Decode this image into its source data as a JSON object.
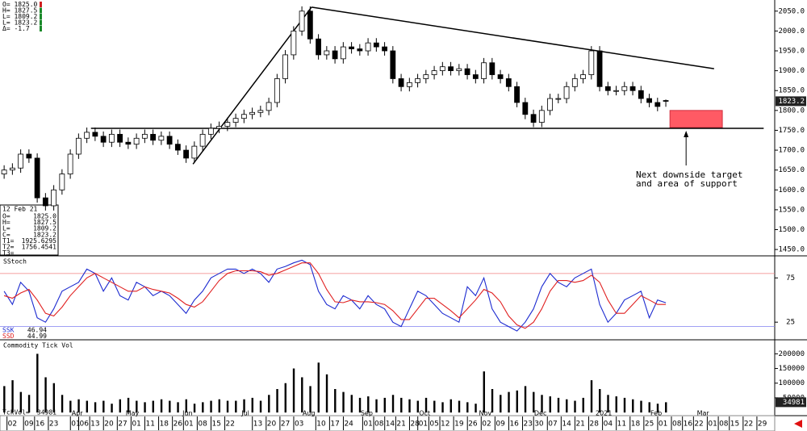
{
  "chart_data": {
    "type": "candlestick",
    "header": [
      "O=  1825.0",
      "H=  1827.5",
      "L=  1809.2",
      "L=  1823.2",
      "Δ=   -1.7"
    ],
    "data_window": {
      "date": "12 Feb 21",
      "rows": [
        {
          "label": "O=",
          "value": "1825.0"
        },
        {
          "label": "H=",
          "value": "1827.5"
        },
        {
          "label": "L=",
          "value": "1809.2"
        },
        {
          "label": "C=",
          "value": "1823.2"
        },
        {
          "label": "T1=",
          "value": "1925.6295"
        },
        {
          "label": "T2=",
          "value": "1756.4541"
        },
        {
          "label": "T3="
        }
      ]
    },
    "xlim": [
      0,
      281
    ],
    "xticks": [
      {
        "value": 4,
        "label": "02"
      },
      {
        "value": 10,
        "label": "09"
      },
      {
        "value": 14,
        "label": "16"
      },
      {
        "value": 19,
        "label": "23"
      },
      {
        "value": 27,
        "label": "01"
      },
      {
        "value": 30,
        "label": "06"
      },
      {
        "value": 34,
        "label": "13"
      },
      {
        "value": 39,
        "label": "20"
      },
      {
        "value": 44,
        "label": "27"
      },
      {
        "value": 49,
        "label": "01"
      },
      {
        "value": 54,
        "label": "11"
      },
      {
        "value": 59,
        "label": "18"
      },
      {
        "value": 64,
        "label": "26"
      },
      {
        "value": 68,
        "label": "01"
      },
      {
        "value": 73,
        "label": "08"
      },
      {
        "value": 78,
        "label": "15"
      },
      {
        "value": 83,
        "label": "22"
      },
      {
        "value": 93,
        "label": "13"
      },
      {
        "value": 98,
        "label": "20"
      },
      {
        "value": 103,
        "label": "27"
      },
      {
        "value": 108,
        "label": "03"
      },
      {
        "value": 116,
        "label": "10"
      },
      {
        "value": 121,
        "label": "17"
      },
      {
        "value": 126,
        "label": "24"
      },
      {
        "value": 133,
        "label": "01"
      },
      {
        "value": 137,
        "label": "08"
      },
      {
        "value": 141,
        "label": "14"
      },
      {
        "value": 145,
        "label": "21"
      },
      {
        "value": 150,
        "label": "28"
      },
      {
        "value": 153,
        "label": "01"
      },
      {
        "value": 157,
        "label": "05"
      },
      {
        "value": 161,
        "label": "12"
      },
      {
        "value": 166,
        "label": "19"
      },
      {
        "value": 171,
        "label": "26"
      },
      {
        "value": 176,
        "label": "02"
      },
      {
        "value": 181,
        "label": "09"
      },
      {
        "value": 186,
        "label": "16"
      },
      {
        "value": 191,
        "label": "23"
      },
      {
        "value": 195,
        "label": "30"
      },
      {
        "value": 200,
        "label": "07"
      },
      {
        "value": 205,
        "label": "14"
      },
      {
        "value": 210,
        "label": "21"
      },
      {
        "value": 215,
        "label": "28"
      },
      {
        "value": 220,
        "label": "04"
      },
      {
        "value": 225,
        "label": "11"
      },
      {
        "value": 230,
        "label": "18"
      },
      {
        "value": 235,
        "label": "25"
      },
      {
        "value": 240,
        "label": "01"
      },
      {
        "value": 245,
        "label": "08"
      },
      {
        "value": 249,
        "label": "16"
      },
      {
        "value": 253,
        "label": "22"
      },
      {
        "value": 258,
        "label": "01"
      },
      {
        "value": 262,
        "label": "08"
      },
      {
        "value": 266,
        "label": "15"
      },
      {
        "value": 271,
        "label": "22"
      },
      {
        "value": 276,
        "label": "29"
      }
    ],
    "month_labels": [
      {
        "value": 28,
        "label": "Apr"
      },
      {
        "value": 48,
        "label": "May"
      },
      {
        "value": 68,
        "label": "Jun"
      },
      {
        "value": 89,
        "label": "Jul"
      },
      {
        "value": 112,
        "label": "Aug"
      },
      {
        "value": 133,
        "label": "Sep"
      },
      {
        "value": 154,
        "label": "Oct"
      },
      {
        "value": 176,
        "label": "Nov"
      },
      {
        "value": 196,
        "label": "Dec"
      },
      {
        "value": 219,
        "label": "2021"
      },
      {
        "value": 238,
        "label": "Feb"
      },
      {
        "value": 255,
        "label": "Mar"
      }
    ],
    "price": {
      "ylim": [
        1436,
        2078
      ],
      "yticks": [
        {
          "value": 2050,
          "label": "2050.0"
        },
        {
          "value": 2000,
          "label": "2000.0"
        },
        {
          "value": 1950,
          "label": "1950.0"
        },
        {
          "value": 1900,
          "label": "1900.0"
        },
        {
          "value": 1850,
          "label": "1850.0"
        },
        {
          "value": 1800,
          "label": "1800.0"
        },
        {
          "value": 1750,
          "label": "1750.0"
        },
        {
          "value": 1700,
          "label": "1700.0"
        },
        {
          "value": 1650,
          "label": "1650.0"
        },
        {
          "value": 1600,
          "label": "1600.0"
        },
        {
          "value": 1550,
          "label": "1550.0"
        },
        {
          "value": 1500,
          "label": "1500.0"
        },
        {
          "value": 1450,
          "label": "1450.0"
        }
      ],
      "open": [
        1640,
        1650,
        1655,
        1690,
        1680,
        1580,
        1560,
        1600,
        1640,
        1690,
        1730,
        1745,
        1735,
        1720,
        1740,
        1720,
        1715,
        1730,
        1740,
        1725,
        1735,
        1715,
        1700,
        1680,
        1710,
        1740,
        1755,
        1760,
        1770,
        1780,
        1790,
        1795,
        1800,
        1820,
        1880,
        1940,
        2000,
        2050,
        1980,
        1940,
        1950,
        1930,
        1960,
        1955,
        1950,
        1970,
        1960,
        1950,
        1880,
        1860,
        1870,
        1880,
        1890,
        1900,
        1910,
        1900,
        1905,
        1890,
        1880,
        1920,
        1890,
        1880,
        1860,
        1820,
        1790,
        1770,
        1800,
        1830,
        1830,
        1860,
        1880,
        1890,
        1950,
        1860,
        1850,
        1850,
        1860,
        1850,
        1830,
        1820,
        1825
      ],
      "high": [
        1662,
        1667,
        1702,
        1702,
        1692,
        1592,
        1612,
        1652,
        1702,
        1742,
        1757,
        1757,
        1747,
        1752,
        1752,
        1732,
        1742,
        1752,
        1752,
        1747,
        1747,
        1727,
        1712,
        1722,
        1752,
        1767,
        1772,
        1782,
        1792,
        1802,
        1807,
        1812,
        1832,
        1892,
        1952,
        2012,
        2062,
        2062,
        1992,
        1962,
        1962,
        1972,
        1972,
        1967,
        1982,
        1982,
        1972,
        1962,
        1892,
        1882,
        1892,
        1902,
        1912,
        1922,
        1922,
        1917,
        1917,
        1902,
        1932,
        1932,
        1902,
        1892,
        1872,
        1832,
        1802,
        1812,
        1842,
        1842,
        1872,
        1892,
        1902,
        1962,
        1962,
        1872,
        1862,
        1872,
        1872,
        1862,
        1842,
        1832,
        1827.5
      ],
      "low": [
        1628,
        1638,
        1643,
        1668,
        1568,
        1548,
        1548,
        1588,
        1628,
        1678,
        1718,
        1723,
        1708,
        1708,
        1708,
        1703,
        1703,
        1718,
        1713,
        1713,
        1703,
        1688,
        1668,
        1668,
        1698,
        1728,
        1743,
        1748,
        1758,
        1768,
        1778,
        1783,
        1788,
        1808,
        1868,
        1928,
        1988,
        1968,
        1928,
        1928,
        1918,
        1918,
        1943,
        1938,
        1938,
        1948,
        1938,
        1868,
        1848,
        1848,
        1858,
        1868,
        1878,
        1888,
        1888,
        1888,
        1878,
        1868,
        1868,
        1878,
        1868,
        1848,
        1808,
        1778,
        1758,
        1758,
        1788,
        1818,
        1818,
        1848,
        1868,
        1878,
        1848,
        1838,
        1838,
        1838,
        1838,
        1818,
        1808,
        1798,
        1809.2
      ],
      "close": [
        1650,
        1655,
        1690,
        1680,
        1580,
        1560,
        1600,
        1640,
        1690,
        1730,
        1745,
        1735,
        1720,
        1740,
        1720,
        1715,
        1730,
        1740,
        1725,
        1735,
        1715,
        1700,
        1680,
        1710,
        1740,
        1755,
        1760,
        1770,
        1780,
        1790,
        1795,
        1800,
        1820,
        1880,
        1940,
        2000,
        2050,
        1980,
        1940,
        1950,
        1930,
        1960,
        1955,
        1950,
        1970,
        1960,
        1950,
        1880,
        1860,
        1870,
        1880,
        1890,
        1900,
        1910,
        1900,
        1905,
        1890,
        1880,
        1920,
        1890,
        1880,
        1860,
        1820,
        1790,
        1770,
        1800,
        1830,
        1830,
        1860,
        1880,
        1890,
        1950,
        1860,
        1850,
        1850,
        1860,
        1850,
        1830,
        1820,
        1810,
        1823.2
      ],
      "last_label": "1823.2",
      "trendlines": [
        {
          "x": [
            70,
            113
          ],
          "y": [
            1665,
            2060
          ]
        },
        {
          "x": [
            113,
            259
          ],
          "y": [
            2060,
            1905
          ]
        },
        {
          "x": [
            33,
            277
          ],
          "y": [
            1755,
            1755
          ]
        }
      ],
      "zone": {
        "x": [
          243,
          262
        ],
        "y": [
          1757,
          1800
        ],
        "color": "#ff5a64"
      },
      "annotation": [
        "Next downside target",
        "and area of support"
      ]
    },
    "stoch": {
      "title": "SStoch",
      "ylim": [
        6,
        99
      ],
      "yticks": [
        75,
        25
      ],
      "bands": [
        {
          "value": 80,
          "color": "#f08080"
        },
        {
          "value": 20,
          "color": "#8080f0"
        }
      ],
      "series": [
        {
          "name": "SSK",
          "color": "#1c2ad0",
          "values": [
            60,
            45,
            70,
            60,
            30,
            25,
            40,
            60,
            65,
            70,
            85,
            80,
            60,
            75,
            55,
            50,
            70,
            65,
            55,
            60,
            55,
            45,
            35,
            50,
            60,
            75,
            80,
            85,
            85,
            80,
            85,
            80,
            70,
            85,
            88,
            92,
            95,
            90,
            60,
            45,
            40,
            55,
            50,
            40,
            55,
            45,
            40,
            25,
            20,
            40,
            60,
            55,
            45,
            35,
            30,
            25,
            65,
            55,
            75,
            40,
            25,
            20,
            15,
            25,
            40,
            65,
            80,
            70,
            65,
            75,
            80,
            85,
            45,
            25,
            35,
            50,
            55,
            60,
            30,
            50,
            46.94
          ]
        },
        {
          "name": "SSD",
          "color": "#e02020",
          "values": [
            55,
            52,
            58,
            62,
            50,
            35,
            32,
            42,
            55,
            65,
            75,
            80,
            75,
            70,
            65,
            60,
            60,
            65,
            62,
            60,
            58,
            52,
            45,
            42,
            48,
            60,
            72,
            80,
            83,
            83,
            83,
            82,
            78,
            80,
            84,
            88,
            92,
            92,
            80,
            62,
            48,
            47,
            50,
            48,
            48,
            47,
            45,
            38,
            28,
            28,
            40,
            52,
            52,
            45,
            38,
            30,
            40,
            50,
            62,
            58,
            48,
            32,
            22,
            18,
            25,
            40,
            60,
            72,
            72,
            70,
            72,
            78,
            70,
            50,
            35,
            35,
            45,
            55,
            50,
            45,
            44.99
          ]
        }
      ],
      "readout": [
        {
          "label": "SSK=",
          "value": "46.94"
        },
        {
          "label": "SSD=",
          "value": "44.99"
        }
      ]
    },
    "volume": {
      "title": "Commodity Tick Vol",
      "ylim": [
        -8000,
        245000
      ],
      "yticks": [
        200000,
        150000,
        100000,
        50000
      ],
      "color": "#000000",
      "values": [
        90000,
        110000,
        70000,
        60000,
        200000,
        120000,
        100000,
        60000,
        40000,
        45000,
        40000,
        35000,
        40000,
        30000,
        45000,
        50000,
        40000,
        35000,
        40000,
        45000,
        40000,
        35000,
        45000,
        30000,
        35000,
        40000,
        45000,
        40000,
        40000,
        45000,
        50000,
        40000,
        60000,
        80000,
        100000,
        150000,
        120000,
        90000,
        170000,
        130000,
        80000,
        70000,
        60000,
        50000,
        55000,
        45000,
        50000,
        60000,
        50000,
        45000,
        40000,
        50000,
        40000,
        35000,
        45000,
        40000,
        35000,
        30000,
        140000,
        80000,
        60000,
        70000,
        75000,
        90000,
        70000,
        60000,
        55000,
        50000,
        45000,
        40000,
        50000,
        110000,
        80000,
        60000,
        55000,
        50000,
        45000,
        40000,
        35000,
        30000,
        34981
      ],
      "last_label": "34981",
      "readout": {
        "label": "TckVol=",
        "value": "34981"
      }
    }
  }
}
